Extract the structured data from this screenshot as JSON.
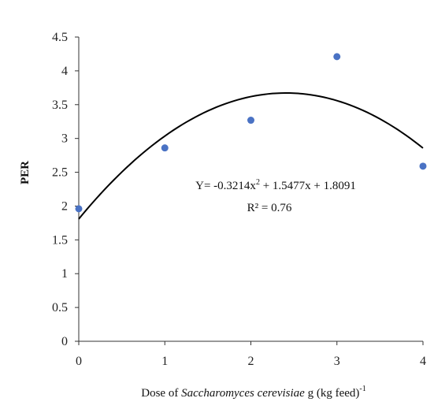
{
  "chart_data": {
    "type": "scatter",
    "x": [
      0,
      1,
      2,
      3,
      4
    ],
    "y": [
      1.96,
      2.86,
      3.27,
      4.21,
      2.59
    ],
    "ylabel": "PER",
    "xlabel_parts": {
      "prefix": "Dose of ",
      "italic": "Saccharomyces cerevisiae",
      "suffix": "  g (kg feed)",
      "superscript": "-1"
    },
    "xlim": [
      0,
      4
    ],
    "ylim": [
      0,
      4.5
    ],
    "x_ticks": [
      "0",
      "1",
      "2",
      "3",
      "4"
    ],
    "y_ticks": [
      "0",
      "0.5",
      "1",
      "1.5",
      "2",
      "2.5",
      "3",
      "3.5",
      "4",
      "4.5"
    ],
    "trendline": {
      "type": "polynomial",
      "coefficients": [
        -0.3214,
        1.5477,
        1.8091
      ],
      "equation_parts": {
        "prefix": "Y= -0.3214x",
        "exp": "2",
        "suffix": " + 1.5477x + 1.8091"
      },
      "r2_text": "R² = 0.76"
    },
    "grid": false,
    "legend": "none",
    "colors": {
      "points": "#4a72c4",
      "line": "#000000",
      "axis": "#333333"
    }
  }
}
